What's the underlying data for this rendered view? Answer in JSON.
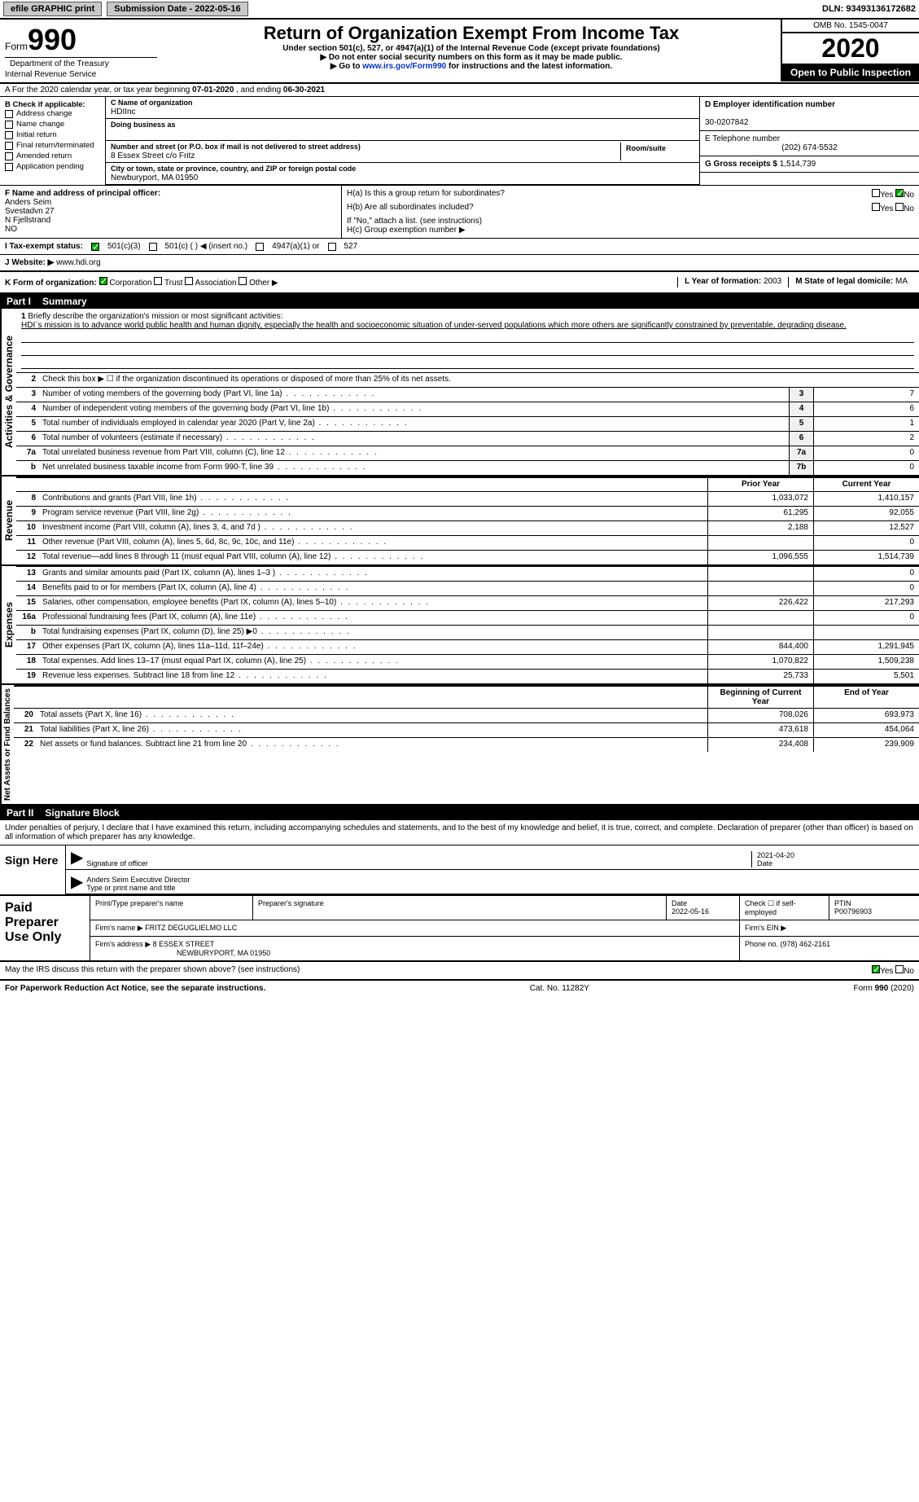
{
  "topbar": {
    "efile": "efile GRAPHIC print",
    "submission_label": "Submission Date - 2022-05-16",
    "dln_label": "DLN: 93493136172682"
  },
  "header": {
    "form_word": "Form",
    "form_num": "990",
    "title": "Return of Organization Exempt From Income Tax",
    "subtitle": "Under section 501(c), 527, or 4947(a)(1) of the Internal Revenue Code (except private foundations)",
    "note1": "Do not enter social security numbers on this form as it may be made public.",
    "note2_pre": "Go to ",
    "note2_link": "www.irs.gov/Form990",
    "note2_post": " for instructions and the latest information.",
    "dept": "Department of the Treasury",
    "irs": "Internal Revenue Service",
    "omb": "OMB No. 1545-0047",
    "year": "2020",
    "open": "Open to Public Inspection"
  },
  "rowA": {
    "prefix": "A For the 2020 calendar year, or tax year beginning ",
    "begin": "07-01-2020",
    "mid": " , and ending ",
    "end": "06-30-2021"
  },
  "B": {
    "label": "B Check if applicable:",
    "opts": [
      "Address change",
      "Name change",
      "Initial return",
      "Final return/terminated",
      "Amended return",
      "Application pending"
    ]
  },
  "C": {
    "name_lbl": "C Name of organization",
    "name": "HDIInc",
    "dba_lbl": "Doing business as",
    "dba": "",
    "street_lbl": "Number and street (or P.O. box if mail is not delivered to street address)",
    "street": "8 Essex Street c/o Fritz",
    "room_lbl": "Room/suite",
    "room": "",
    "city_lbl": "City or town, state or province, country, and ZIP or foreign postal code",
    "city": "Newburyport, MA  01950"
  },
  "D": {
    "ein_lbl": "D Employer identification number",
    "ein": "30-0207842",
    "phone_lbl": "E Telephone number",
    "phone": "(202) 674-5532",
    "gross_lbl": "G Gross receipts $ ",
    "gross": "1,514,739"
  },
  "F": {
    "lbl": "F  Name and address of principal officer:",
    "name": "Anders Seim",
    "addr1": "Svestadvn 27",
    "addr2": "N Fjellstrand",
    "addr3": "NO"
  },
  "H": {
    "a": "H(a)  Is this a group return for subordinates?",
    "b": "H(b)  Are all subordinates included?",
    "b_note": "If \"No,\" attach a list. (see instructions)",
    "c": "H(c)  Group exemption number ▶",
    "yes": "Yes",
    "no": "No"
  },
  "I": {
    "lbl": "I  Tax-exempt status:",
    "o1": "501(c)(3)",
    "o2": "501(c) (  ) ◀ (insert no.)",
    "o3": "4947(a)(1) or",
    "o4": "527"
  },
  "J": {
    "lbl": "J Website: ▶",
    "val": "www.hdi.org"
  },
  "K": {
    "lbl": "K Form of organization:",
    "o1": "Corporation",
    "o2": "Trust",
    "o3": "Association",
    "o4": "Other ▶"
  },
  "L": {
    "lbl": "L Year of formation: ",
    "val": "2003"
  },
  "M": {
    "lbl": "M State of legal domicile: ",
    "val": "MA"
  },
  "part1": {
    "num": "Part I",
    "title": "Summary"
  },
  "mission": {
    "num": "1",
    "lbl": "Briefly describe the organization's mission or most significant activities:",
    "text": "HDI`s mission is to advance world public health and human dignity, especially the health and socioeconomic situation of under-served populations which more others are significantly constrained by preventable, degrading disease."
  },
  "gov_lines": [
    {
      "n": "2",
      "t": "Check this box ▶ ☐ if the organization discontinued its operations or disposed of more than 25% of its net assets."
    },
    {
      "n": "3",
      "t": "Number of voting members of the governing body (Part VI, line 1a)",
      "c": "3",
      "v": "7"
    },
    {
      "n": "4",
      "t": "Number of independent voting members of the governing body (Part VI, line 1b)",
      "c": "4",
      "v": "6"
    },
    {
      "n": "5",
      "t": "Total number of individuals employed in calendar year 2020 (Part V, line 2a)",
      "c": "5",
      "v": "1"
    },
    {
      "n": "6",
      "t": "Total number of volunteers (estimate if necessary)",
      "c": "6",
      "v": "2"
    },
    {
      "n": "7a",
      "t": "Total unrelated business revenue from Part VIII, column (C), line 12",
      "c": "7a",
      "v": "0"
    },
    {
      "n": "b",
      "t": "Net unrelated business taxable income from Form 990-T, line 39",
      "c": "7b",
      "v": "0"
    }
  ],
  "rev_hdr": {
    "prior": "Prior Year",
    "curr": "Current Year"
  },
  "rev_lines": [
    {
      "n": "8",
      "t": "Contributions and grants (Part VIII, line 1h)",
      "p": "1,033,072",
      "c": "1,410,157"
    },
    {
      "n": "9",
      "t": "Program service revenue (Part VIII, line 2g)",
      "p": "61,295",
      "c": "92,055"
    },
    {
      "n": "10",
      "t": "Investment income (Part VIII, column (A), lines 3, 4, and 7d )",
      "p": "2,188",
      "c": "12,527"
    },
    {
      "n": "11",
      "t": "Other revenue (Part VIII, column (A), lines 5, 6d, 8c, 9c, 10c, and 11e)",
      "p": "",
      "c": "0"
    },
    {
      "n": "12",
      "t": "Total revenue—add lines 8 through 11 (must equal Part VIII, column (A), line 12)",
      "p": "1,096,555",
      "c": "1,514,739"
    }
  ],
  "exp_lines": [
    {
      "n": "13",
      "t": "Grants and similar amounts paid (Part IX, column (A), lines 1–3 )",
      "p": "",
      "c": "0"
    },
    {
      "n": "14",
      "t": "Benefits paid to or for members (Part IX, column (A), line 4)",
      "p": "",
      "c": "0"
    },
    {
      "n": "15",
      "t": "Salaries, other compensation, employee benefits (Part IX, column (A), lines 5–10)",
      "p": "226,422",
      "c": "217,293"
    },
    {
      "n": "16a",
      "t": "Professional fundraising fees (Part IX, column (A), line 11e)",
      "p": "",
      "c": "0"
    },
    {
      "n": "b",
      "t": "Total fundraising expenses (Part IX, column (D), line 25) ▶0",
      "p": "",
      "c": ""
    },
    {
      "n": "17",
      "t": "Other expenses (Part IX, column (A), lines 11a–11d, 11f–24e)",
      "p": "844,400",
      "c": "1,291,945"
    },
    {
      "n": "18",
      "t": "Total expenses. Add lines 13–17 (must equal Part IX, column (A), line 25)",
      "p": "1,070,822",
      "c": "1,509,238"
    },
    {
      "n": "19",
      "t": "Revenue less expenses. Subtract line 18 from line 12",
      "p": "25,733",
      "c": "5,501"
    }
  ],
  "net_hdr": {
    "prior": "Beginning of Current Year",
    "curr": "End of Year"
  },
  "net_lines": [
    {
      "n": "20",
      "t": "Total assets (Part X, line 16)",
      "p": "708,026",
      "c": "693,973"
    },
    {
      "n": "21",
      "t": "Total liabilities (Part X, line 26)",
      "p": "473,618",
      "c": "454,064"
    },
    {
      "n": "22",
      "t": "Net assets or fund balances. Subtract line 21 from line 20",
      "p": "234,408",
      "c": "239,909"
    }
  ],
  "labels": {
    "activities": "Activities & Governance",
    "revenue": "Revenue",
    "expenses": "Expenses",
    "netassets": "Net Assets or Fund Balances"
  },
  "part2": {
    "num": "Part II",
    "title": "Signature Block"
  },
  "sig": {
    "decl": "Under penalties of perjury, I declare that I have examined this return, including accompanying schedules and statements, and to the best of my knowledge and belief, it is true, correct, and complete. Declaration of preparer (other than officer) is based on all information of which preparer has any knowledge.",
    "sign_here": "Sign Here",
    "sig_officer": "Signature of officer",
    "date": "Date",
    "date_val": "2021-04-20",
    "name_title": "Anders Seim  Executive Director",
    "name_lbl": "Type or print name and title"
  },
  "paid": {
    "lbl": "Paid Preparer Use Only",
    "h1": "Print/Type preparer's name",
    "h2": "Preparer's signature",
    "h3": "Date",
    "h3v": "2022-05-16",
    "h4": "Check ☐ if self-employed",
    "h5": "PTIN",
    "h5v": "P00796903",
    "firm_lbl": "Firm's name   ▶",
    "firm": "FRITZ DEGUGLIELMO LLC",
    "ein_lbl": "Firm's EIN ▶",
    "addr_lbl": "Firm's address ▶",
    "addr": "8 ESSEX STREET",
    "addr2": "NEWBURYPORT, MA  01950",
    "phone_lbl": "Phone no. ",
    "phone": "(978) 462-2161"
  },
  "discuss": {
    "q": "May the IRS discuss this return with the preparer shown above? (see instructions)",
    "yes": "Yes",
    "no": "No"
  },
  "footer": {
    "left": "For Paperwork Reduction Act Notice, see the separate instructions.",
    "mid": "Cat. No. 11282Y",
    "right_pre": "Form ",
    "right_bold": "990",
    "right_post": " (2020)"
  }
}
